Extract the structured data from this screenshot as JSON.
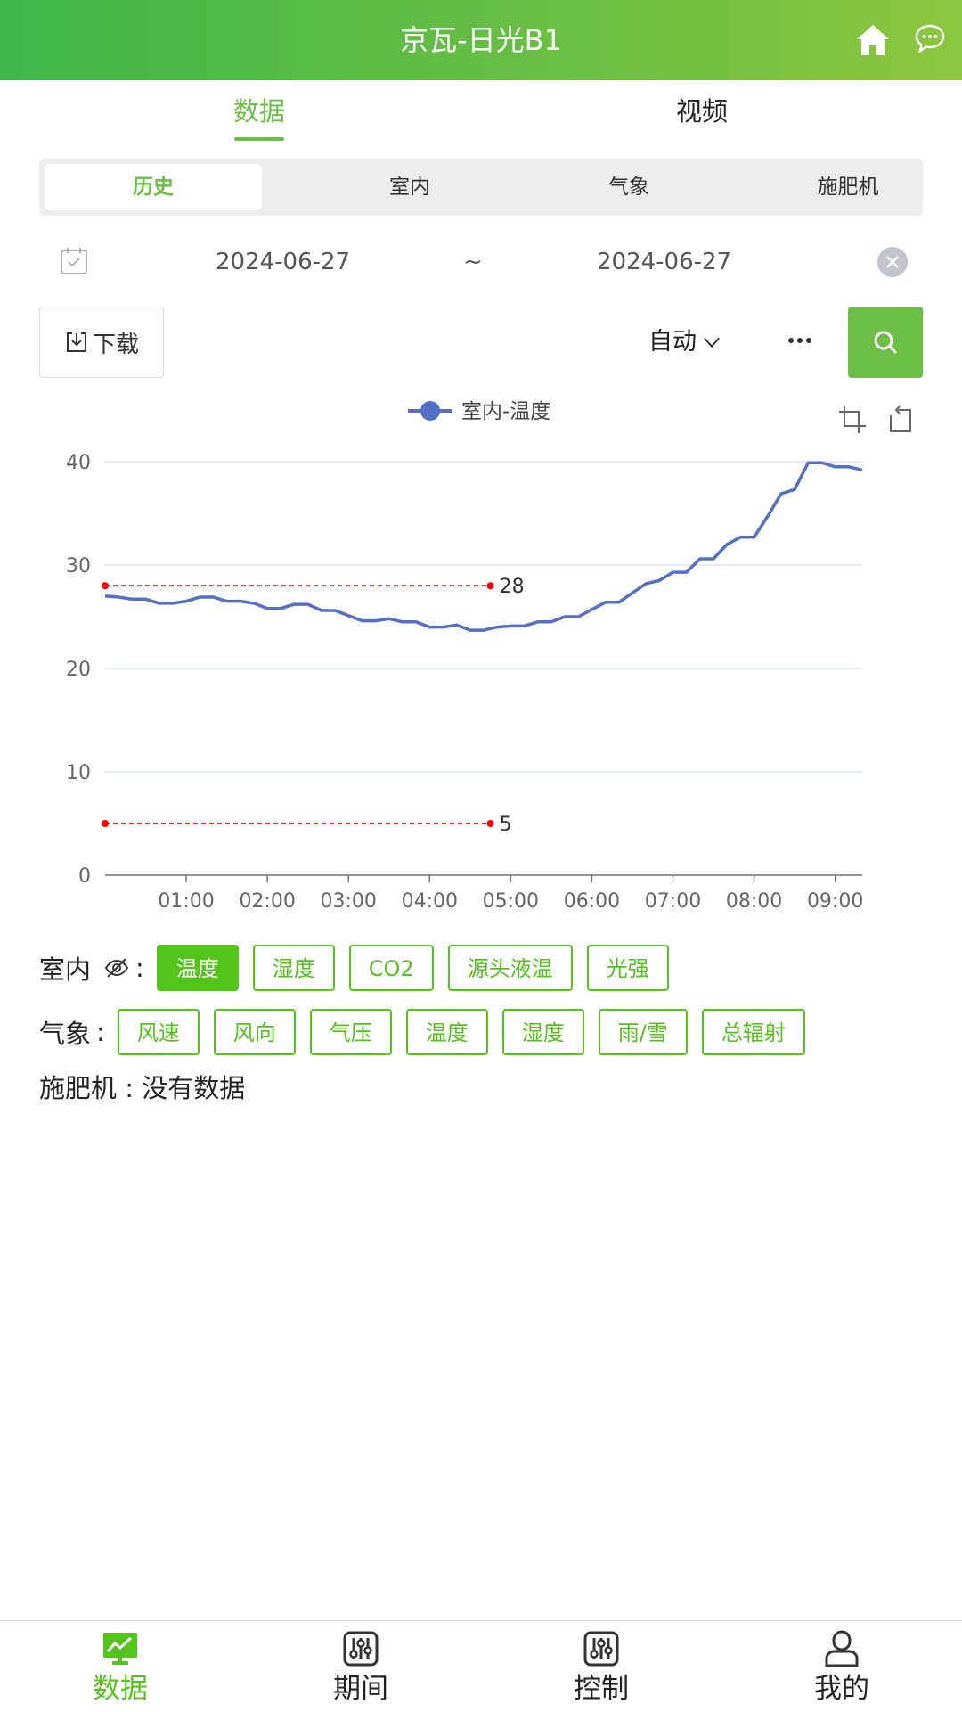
{
  "header": {
    "title": "京瓦-日光B1",
    "home_icon": "home-icon",
    "chat_icon": "chat-bubble-icon"
  },
  "main_tabs": [
    {
      "label": "数据",
      "active": true
    },
    {
      "label": "视频",
      "active": false
    }
  ],
  "sub_tabs": [
    {
      "label": "历史",
      "active": true
    },
    {
      "label": "室内"
    },
    {
      "label": "气象"
    },
    {
      "label": "施肥机"
    }
  ],
  "date_range": {
    "start": "2024-06-27",
    "separator": "~",
    "end": "2024-06-27"
  },
  "toolbar": {
    "download_label": "下载",
    "interval_label": "自动",
    "more_icon": "more-dots-icon",
    "search_icon": "search-icon"
  },
  "chart_data": {
    "type": "line",
    "series": [
      {
        "name": "室内-温度",
        "color": "#5470c6",
        "x": [
          "00:00",
          "00:10",
          "00:20",
          "00:30",
          "00:40",
          "00:50",
          "01:00",
          "01:10",
          "01:20",
          "01:30",
          "01:40",
          "01:50",
          "02:00",
          "02:10",
          "02:20",
          "02:30",
          "02:40",
          "02:50",
          "03:00",
          "03:10",
          "03:20",
          "03:30",
          "03:40",
          "03:50",
          "04:00",
          "04:10",
          "04:20",
          "04:30",
          "04:40",
          "04:50",
          "05:00",
          "05:10",
          "05:20",
          "05:30",
          "05:40",
          "05:50",
          "06:00",
          "06:10",
          "06:20",
          "06:30",
          "06:40",
          "06:50",
          "07:00",
          "07:10",
          "07:20",
          "07:30",
          "07:40",
          "07:50",
          "08:00",
          "08:10",
          "08:20",
          "08:30",
          "08:40",
          "08:50",
          "09:00",
          "09:10",
          "09:20"
        ],
        "values": [
          27.0,
          26.9,
          26.7,
          26.7,
          26.3,
          26.3,
          26.5,
          26.9,
          26.9,
          26.5,
          26.5,
          26.3,
          25.8,
          25.8,
          26.2,
          26.2,
          25.6,
          25.6,
          25.1,
          24.6,
          24.6,
          24.8,
          24.5,
          24.5,
          24.0,
          24.0,
          24.2,
          23.7,
          23.7,
          24.0,
          24.1,
          24.1,
          24.5,
          24.5,
          25.0,
          25.0,
          25.7,
          26.4,
          26.4,
          27.3,
          28.2,
          28.5,
          29.3,
          29.3,
          30.6,
          30.6,
          32.0,
          32.7,
          32.7,
          34.7,
          36.9,
          37.3,
          39.9,
          39.9,
          39.5,
          39.5,
          39.2
        ]
      }
    ],
    "reference_lines": [
      {
        "value": 28,
        "label": "28"
      },
      {
        "value": 5,
        "label": "5"
      }
    ],
    "reference_color": "#ff0000",
    "x_ticks": [
      "01:00",
      "02:00",
      "03:00",
      "04:00",
      "05:00",
      "06:00",
      "07:00",
      "08:00",
      "09:00"
    ],
    "y_ticks": [
      0,
      10,
      20,
      30,
      40
    ],
    "ylim": [
      0,
      40
    ],
    "xlim": [
      "00:00",
      "09:20"
    ],
    "grid": true,
    "legend_position": "top-center",
    "tool_icons": [
      "zoom-icon",
      "restore-icon"
    ]
  },
  "filters": {
    "indoor": {
      "label": "室内",
      "eye_icon": "eye-off-icon",
      "colon": ":",
      "tags": [
        {
          "label": "温度",
          "active": true
        },
        {
          "label": "湿度"
        },
        {
          "label": "CO2"
        },
        {
          "label": "源头液温"
        },
        {
          "label": "光强"
        }
      ]
    },
    "weather": {
      "label": "气象",
      "colon": ":",
      "tags": [
        {
          "label": "风速"
        },
        {
          "label": "风向"
        },
        {
          "label": "气压"
        },
        {
          "label": "温度"
        },
        {
          "label": "湿度"
        },
        {
          "label": "雨/雪"
        },
        {
          "label": "总辐射"
        }
      ]
    },
    "fertilizer": {
      "text": "施肥机 : 没有数据"
    }
  },
  "bottom_nav": [
    {
      "label": "数据",
      "icon": "monitor-chart-icon",
      "active": true
    },
    {
      "label": "期间",
      "icon": "sliders-icon"
    },
    {
      "label": "控制",
      "icon": "sliders-icon"
    },
    {
      "label": "我的",
      "icon": "user-icon"
    }
  ],
  "colors": {
    "brand": "#6cbf44",
    "tag_green": "#52c41a",
    "line": "#5470c6"
  }
}
